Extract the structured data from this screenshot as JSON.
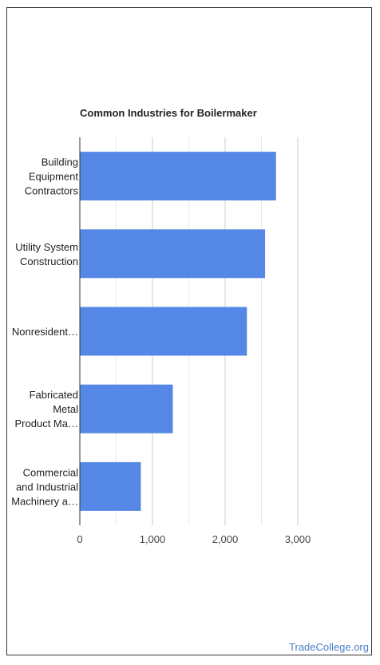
{
  "chart_data": {
    "type": "bar",
    "orientation": "horizontal",
    "title": "Common Industries for Boilermaker",
    "categories": [
      [
        "Building",
        "Equipment",
        "Contractors"
      ],
      [
        "Utility System",
        "Construction"
      ],
      [
        "Nonresident…"
      ],
      [
        "Fabricated",
        "Metal",
        "Product Ma…"
      ],
      [
        "Commercial",
        "and Industrial",
        "Machinery a…"
      ]
    ],
    "values": [
      2700,
      2550,
      2300,
      1280,
      840
    ],
    "xlim": [
      0,
      3000
    ],
    "xticks": [
      0,
      1000,
      2000,
      3000
    ],
    "xtick_labels": [
      "0",
      "1,000",
      "2,000",
      "3,000"
    ],
    "grid": true,
    "bar_color": "#5588e6"
  },
  "credit": "TradeCollege.org"
}
